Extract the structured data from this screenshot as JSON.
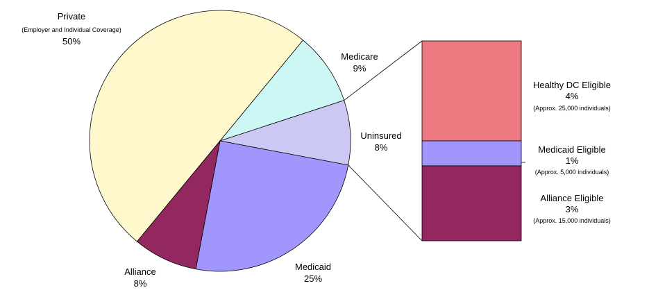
{
  "chart_data": {
    "type": "pie",
    "slices": [
      {
        "name": "Private",
        "sub": "(Employer and Individual Coverage)",
        "value": 50,
        "pct_label": "50%",
        "color": "#FFF8CC"
      },
      {
        "name": "Medicare",
        "value": 9,
        "pct_label": "9%",
        "color": "#CCF7F5"
      },
      {
        "name": "Uninsured",
        "value": 8,
        "pct_label": "8%",
        "color": "#CCC8F4"
      },
      {
        "name": "Medicaid",
        "value": 25,
        "pct_label": "25%",
        "color": "#A196FB"
      },
      {
        "name": "Alliance",
        "value": 8,
        "pct_label": "8%",
        "color": "#93275F"
      }
    ],
    "breakdown": {
      "of": "Uninsured",
      "segments": [
        {
          "name": "Healthy DC Eligible",
          "value": 4,
          "pct_label": "4%",
          "note": "(Approx. 25,000 individuals)",
          "color": "#EE7A81"
        },
        {
          "name": "Medicaid Eligible",
          "value": 1,
          "pct_label": "1%",
          "note": "(Approx. 5,000 individuals)",
          "color": "#A196FB"
        },
        {
          "name": "Alliance Eligible",
          "value": 3,
          "pct_label": "3%",
          "note": "(Approx. 15,000 individuals)",
          "color": "#93275F"
        }
      ]
    }
  }
}
